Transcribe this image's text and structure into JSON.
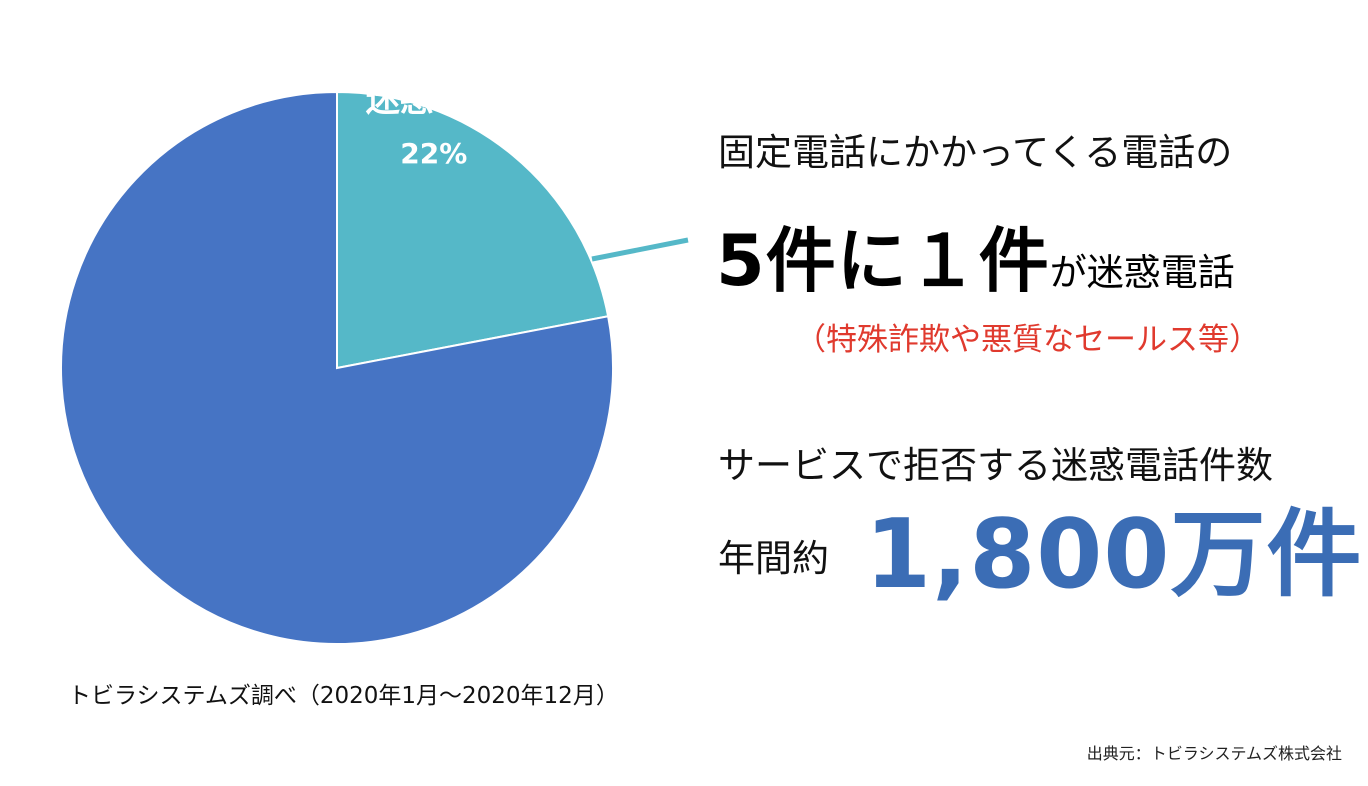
{
  "chart_data": {
    "type": "pie",
    "slices": [
      {
        "label": "迷惑電話",
        "value": 22,
        "value_label": "22%",
        "color": "#55b8c8"
      },
      {
        "label": "",
        "value": 78,
        "value_label": "",
        "color": "#4674c4"
      }
    ],
    "start_angle_deg": 0,
    "direction": "clockwise",
    "source_note": "トビラシステムズ調べ（2020年1月〜2020年12月）"
  },
  "callout": {
    "line1": "固定電話にかかってくる電話の",
    "line2_big": "5件に１件",
    "line2_small": "が迷惑電話",
    "line3": "（特殊詐欺や悪質なセールス等）",
    "line4": "サービスで拒否する迷惑電話件数",
    "line5_prefix": "年間約",
    "count": "1,800万件"
  },
  "footer": {
    "source": "出典元：トビラシステムズ株式会社"
  },
  "colors": {
    "accent_blue": "#3b6db5",
    "callout_line": "#55b8c8",
    "note_red": "#e03a2e"
  }
}
